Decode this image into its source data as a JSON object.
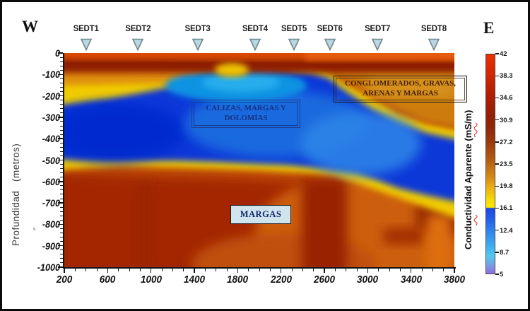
{
  "figure": {
    "west_label": "W",
    "east_label": "E"
  },
  "stations": [
    {
      "label": "SEDT1",
      "distance_m": 400
    },
    {
      "label": "SEDT2",
      "distance_m": 880
    },
    {
      "label": "SEDT3",
      "distance_m": 1430
    },
    {
      "label": "SEDT4",
      "distance_m": 1960
    },
    {
      "label": "SEDT5",
      "distance_m": 2320
    },
    {
      "label": "SEDT6",
      "distance_m": 2650
    },
    {
      "label": "SEDT7",
      "distance_m": 3090
    },
    {
      "label": "SEDT8",
      "distance_m": 3610
    }
  ],
  "axes": {
    "y_title": "Profundidad   (metros)",
    "y_ticks": [
      0,
      -100,
      -200,
      -300,
      -400,
      -500,
      -600,
      -700,
      -800,
      -900,
      -1000
    ],
    "x_ticks": [
      200,
      600,
      1000,
      1400,
      1800,
      2200,
      2600,
      3000,
      3400,
      3800
    ],
    "y_minor_step_m": 20,
    "x_minor_step_m": 100,
    "x_range": [
      200,
      3800
    ],
    "y_range": [
      0,
      -1000
    ],
    "stray_mark": "s"
  },
  "colorbar": {
    "title": "Conductividad Aparente (mS/m)",
    "ticks": [
      "42",
      "38.3",
      "34.6",
      "30.9",
      "27.2",
      "23.5",
      "19.8",
      "16.1",
      "12.4",
      "8.7",
      "5"
    ],
    "min": 5,
    "max": 42,
    "units": "mS/m"
  },
  "annotations": {
    "calizas": "CALIZAS, MARGAS Y DOLOMÍAS",
    "conglomerados": "CONGLOMERADOS, GRAVAS, ARENAS Y MARGAS",
    "margas": "MARGAS"
  },
  "chart_data": {
    "type": "heatmap",
    "title": "",
    "orientation_labels": {
      "left": "W",
      "right": "E"
    },
    "ylabel": "Profundidad   (metros)",
    "colorbar_label": "Conductividad Aparente (mS/m)",
    "x_range_m": [
      200,
      3800
    ],
    "depth_range_m": [
      0,
      -1000
    ],
    "x_tick_labels": [
      200,
      600,
      1000,
      1400,
      1800,
      2200,
      2600,
      3000,
      3400,
      3800
    ],
    "y_tick_labels": [
      0,
      -100,
      -200,
      -300,
      -400,
      -500,
      -600,
      -700,
      -800,
      -900,
      -1000
    ],
    "colorbar_ticks_mS_m": [
      42,
      38.3,
      34.6,
      30.9,
      27.2,
      23.5,
      19.8,
      16.1,
      12.4,
      8.7,
      5
    ],
    "colorbar_range_mS_m": [
      5,
      42
    ],
    "stations": {
      "labels": [
        "SEDT1",
        "SEDT2",
        "SEDT3",
        "SEDT4",
        "SEDT5",
        "SEDT6",
        "SEDT7",
        "SEDT8"
      ],
      "approx_distance_m": [
        400,
        880,
        1430,
        1960,
        2320,
        2650,
        3090,
        3610
      ]
    },
    "geological_units": [
      {
        "name": "surface high-conductivity band",
        "approx_extent": {
          "x_m": [
            200,
            3800
          ],
          "depth_m": [
            0,
            -80
          ]
        },
        "apparent_conductivity_mS_m": [
          30,
          42
        ],
        "color": "dark red / bright red"
      },
      {
        "name": "CONGLOMERADOS, GRAVAS, ARENAS Y MARGAS",
        "approx_extent": {
          "x_m": [
            2300,
            3800
          ],
          "depth_m": [
            -50,
            -400
          ]
        },
        "apparent_conductivity_mS_m": [
          20,
          35
        ],
        "color": "orange-brown"
      },
      {
        "name": "CALIZAS, MARGAS Y DOLOMÍAS",
        "approx_extent": {
          "x_m": [
            200,
            3800
          ],
          "depth_m": [
            -100,
            -700
          ]
        },
        "apparent_conductivity_mS_m": [
          5,
          16
        ],
        "color": "blue lens",
        "note": "low-conductivity lens; shallowest (~-100 m) between 1700-2400 m, lying at -250 to -480 m on the west and deepening to -500/-700 m toward the east"
      },
      {
        "name": "MARGAS",
        "approx_extent": {
          "x_m": [
            200,
            3800
          ],
          "depth_m": [
            -500,
            -1000
          ]
        },
        "apparent_conductivity_mS_m": [
          23,
          35
        ],
        "color": "dark red to orange basement with darker vertical streaks near 2400-2600 m"
      }
    ],
    "legend_position": "right colorbar",
    "grid": false
  }
}
